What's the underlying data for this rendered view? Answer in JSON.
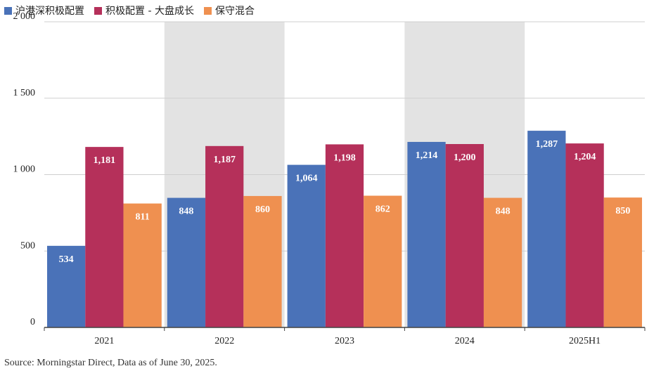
{
  "legend": {
    "items": [
      {
        "label": "沪港深积极配置",
        "color": "#4a72b8"
      },
      {
        "label": "积极配置 - 大盘成长",
        "color": "#b5305a"
      },
      {
        "label": "保守混合",
        "color": "#ef9050"
      }
    ]
  },
  "source": "Source: Morningstar Direct,  Data as of June 30, 2025.",
  "chart_data": {
    "type": "bar",
    "title": "",
    "xlabel": "",
    "ylabel": "",
    "categories": [
      "2021",
      "2022",
      "2023",
      "2024",
      "2025H1"
    ],
    "series": [
      {
        "name": "沪港深积极配置",
        "color": "#4a72b8",
        "values": [
          534,
          848,
          1064,
          1214,
          1287
        ],
        "labels": [
          "534",
          "848",
          "1,064",
          "1,214",
          "1,287"
        ]
      },
      {
        "name": "积极配置 - 大盘成长",
        "color": "#b5305a",
        "values": [
          1181,
          1187,
          1198,
          1200,
          1204
        ],
        "labels": [
          "1,181",
          "1,187",
          "1,198",
          "1,200",
          "1,204"
        ]
      },
      {
        "name": "保守混合",
        "color": "#ef9050",
        "values": [
          811,
          860,
          862,
          848,
          850
        ],
        "labels": [
          "811",
          "860",
          "862",
          "848",
          "850"
        ]
      }
    ],
    "ylim": [
      0,
      2000
    ],
    "yticks": [
      0,
      500,
      1000,
      1500,
      2000
    ],
    "ytick_labels": [
      "0",
      "500",
      "1 000",
      "1 500",
      "2 000"
    ],
    "grid": true,
    "legend_position": "top-left",
    "band_color": "#e3e3e3"
  }
}
